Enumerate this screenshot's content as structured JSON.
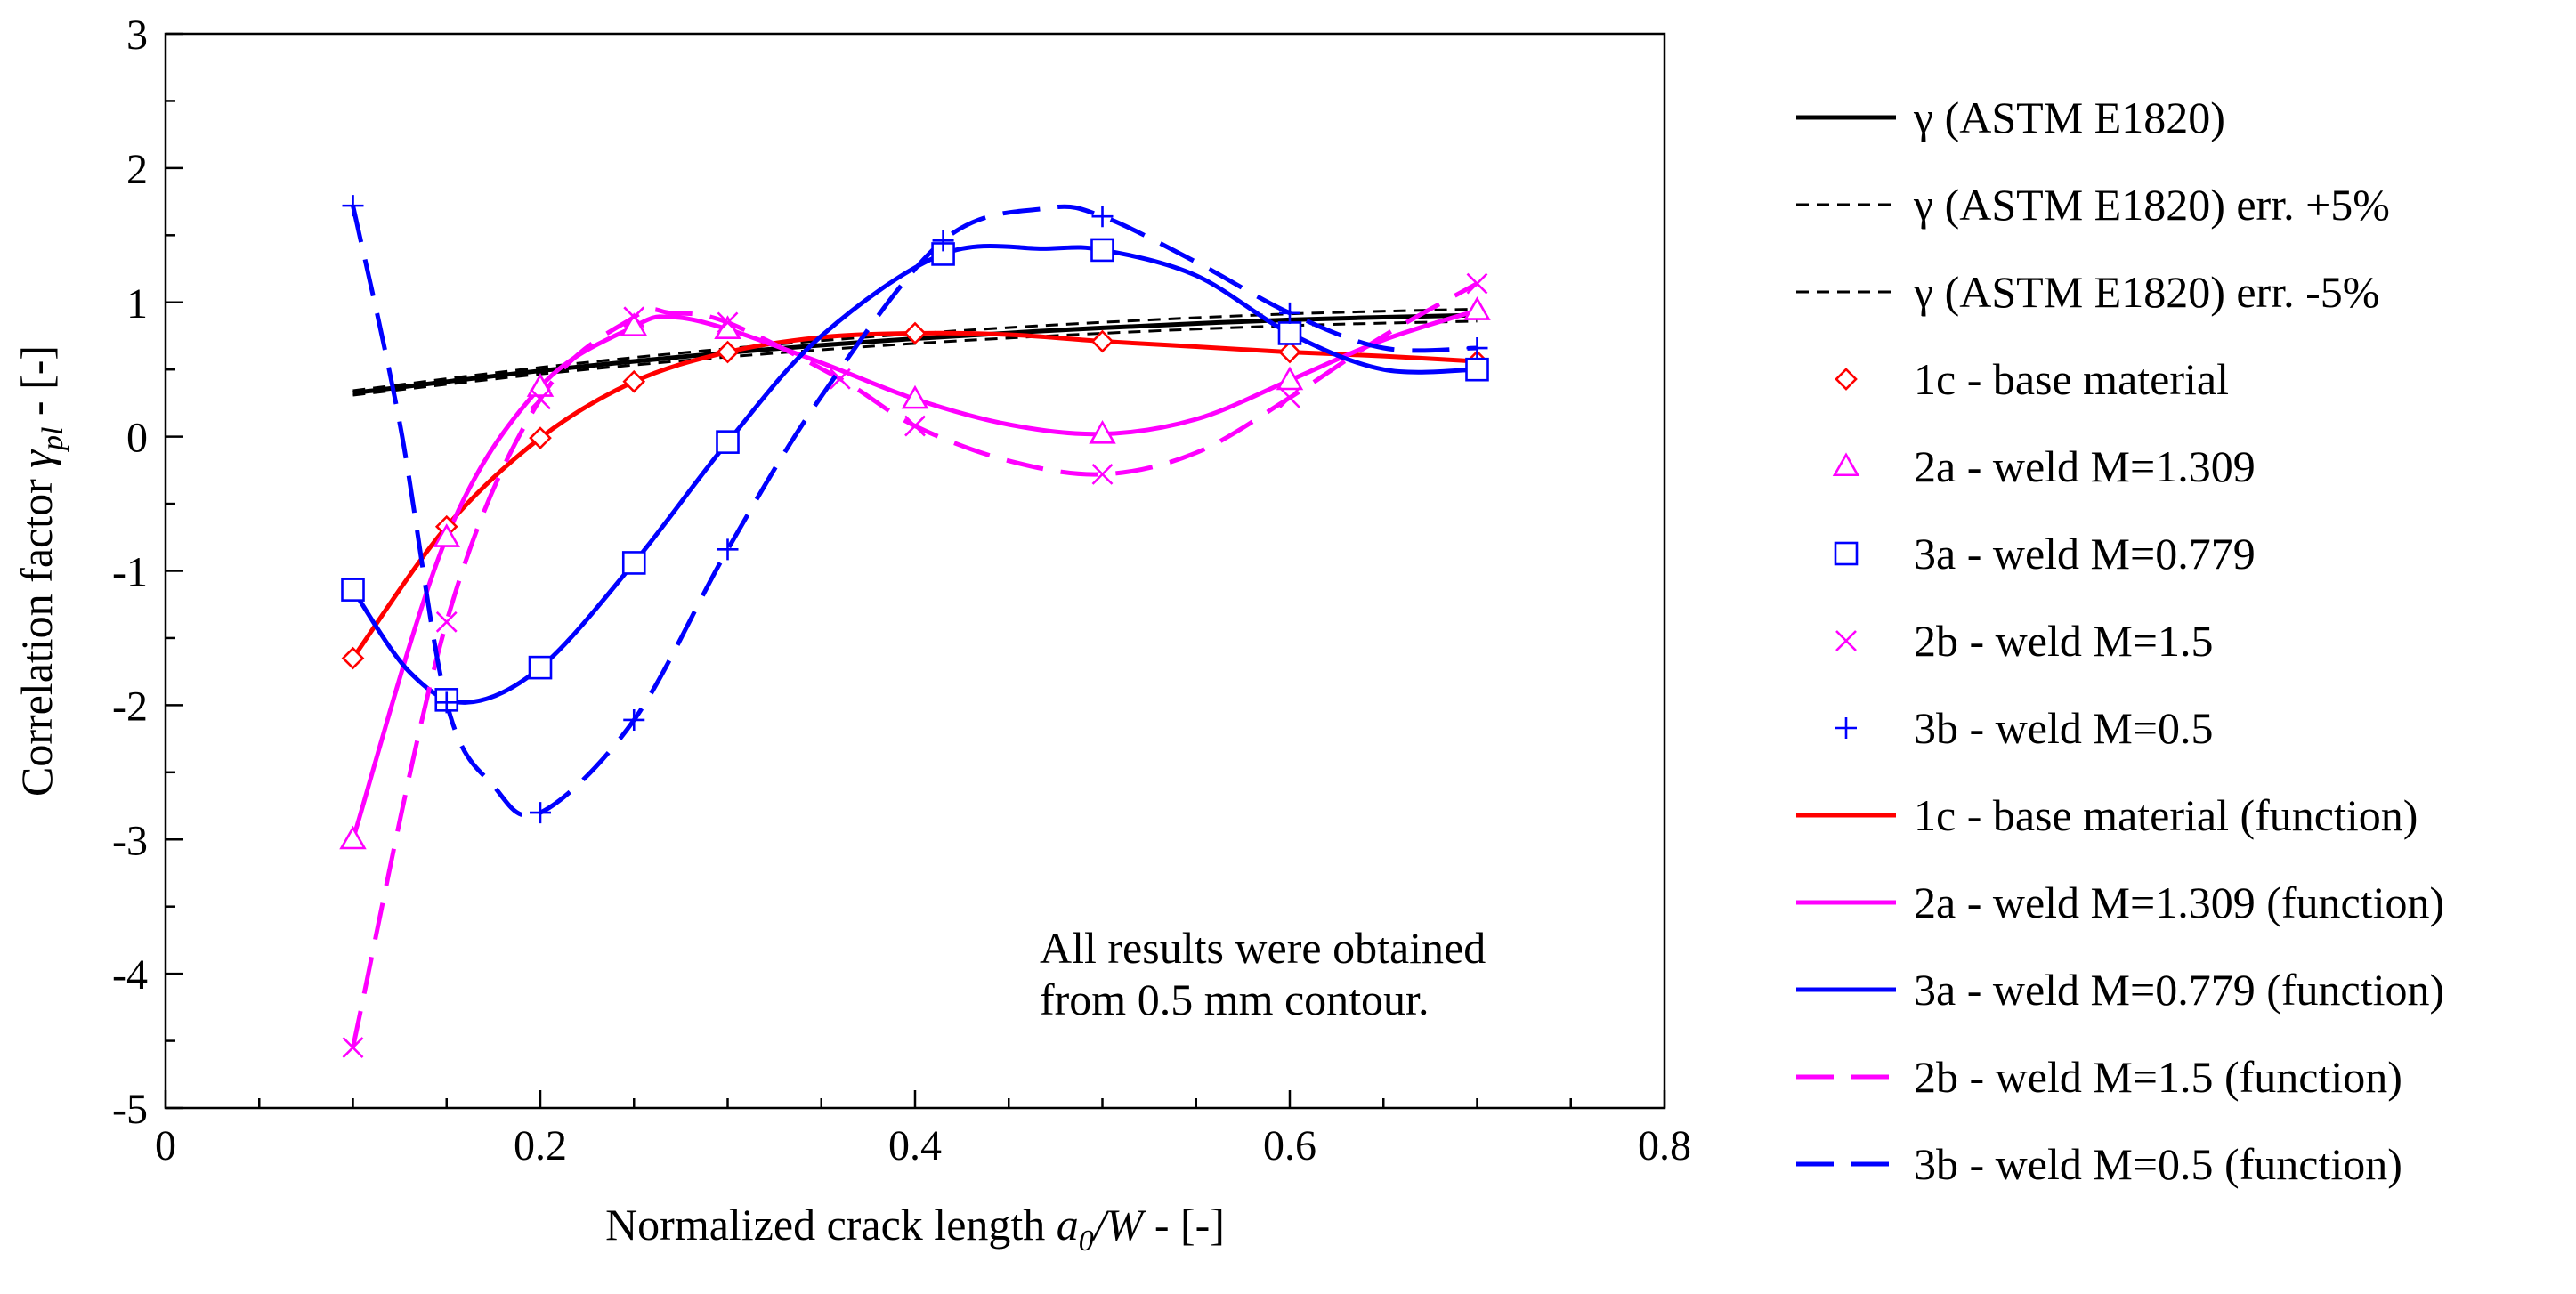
{
  "chart_data": {
    "type": "line",
    "title": "",
    "xlabel": {
      "prefix": "Normalized crack length ",
      "var": "a",
      "sub": "0",
      "rest": "/W",
      "suffix": " - [-]"
    },
    "ylabel": {
      "prefix": "Correlation factor ",
      "var": "γ",
      "sub": "pl",
      "suffix": " - [-]"
    },
    "xlim": [
      0,
      0.8
    ],
    "ylim": [
      -5,
      3
    ],
    "x_major_ticks": [
      0,
      0.2,
      0.4,
      0.6,
      0.8
    ],
    "x_tick_labels": [
      "0",
      "0.2",
      "0.4",
      "0.6",
      "0.8"
    ],
    "x_minor_step": 0.05,
    "y_major_ticks": [
      -5,
      -4,
      -3,
      -2,
      -1,
      0,
      1,
      2,
      3
    ],
    "y_tick_labels": [
      "-5",
      "-4",
      "-3",
      "-2",
      "-1",
      "0",
      "1",
      "2",
      "3"
    ],
    "y_minor_step": 0.5,
    "grid": false,
    "legend_position": "right-outside",
    "annotation": [
      "All results were obtained",
      "from 0.5 mm contour."
    ],
    "reference_lines": [
      {
        "name": "γ (ASTM E1820)",
        "color": "#000000",
        "dash": "solid",
        "x": [
          0.1,
          0.2,
          0.3,
          0.4,
          0.5,
          0.6,
          0.7
        ],
        "y": [
          0.325,
          0.49,
          0.625,
          0.73,
          0.81,
          0.87,
          0.905
        ]
      },
      {
        "name": "γ (ASTM E1820) err. +5%",
        "color": "#000000",
        "dash": "short",
        "x": [
          0.1,
          0.2,
          0.3,
          0.4,
          0.5,
          0.6,
          0.7
        ],
        "y": [
          0.342,
          0.515,
          0.656,
          0.767,
          0.851,
          0.914,
          0.95
        ]
      },
      {
        "name": "γ (ASTM E1820) err. -5%",
        "color": "#000000",
        "dash": "short",
        "x": [
          0.1,
          0.2,
          0.3,
          0.4,
          0.5,
          0.6,
          0.7
        ],
        "y": [
          0.309,
          0.466,
          0.594,
          0.694,
          0.77,
          0.827,
          0.86
        ]
      }
    ],
    "series": [
      {
        "name": "1c - base material",
        "marker": "diamond",
        "color": "#ff0000",
        "x": [
          0.1,
          0.15,
          0.2,
          0.25,
          0.3,
          0.4,
          0.5,
          0.6,
          0.7
        ],
        "y": [
          -1.65,
          -0.67,
          -0.01,
          0.41,
          0.63,
          0.77,
          0.71,
          0.63,
          0.56
        ]
      },
      {
        "name": "2a - weld M=1.309",
        "marker": "triangle",
        "color": "#ff00ff",
        "x": [
          0.1,
          0.15,
          0.2,
          0.25,
          0.3,
          0.4,
          0.5,
          0.6,
          0.7
        ],
        "y": [
          -3.0,
          -0.75,
          0.37,
          0.82,
          0.8,
          0.28,
          0.02,
          0.42,
          0.94
        ]
      },
      {
        "name": "3a - weld M=0.779",
        "marker": "square",
        "color": "#0000ff",
        "x": [
          0.1,
          0.15,
          0.2,
          0.25,
          0.3,
          0.415,
          0.5,
          0.6,
          0.7
        ],
        "y": [
          -1.14,
          -1.96,
          -1.72,
          -0.94,
          -0.04,
          1.36,
          1.39,
          0.77,
          0.5
        ]
      },
      {
        "name": "2b - weld M=1.5",
        "marker": "x",
        "color": "#ff00ff",
        "x": [
          0.1,
          0.15,
          0.2,
          0.25,
          0.3,
          0.36,
          0.4,
          0.5,
          0.6,
          0.7
        ],
        "y": [
          -4.55,
          -1.38,
          0.28,
          0.89,
          0.85,
          0.43,
          0.08,
          -0.28,
          0.29,
          1.14
        ]
      },
      {
        "name": "3b - weld M=0.5",
        "marker": "plus",
        "color": "#0000ff",
        "x": [
          0.1,
          0.15,
          0.2,
          0.25,
          0.3,
          0.415,
          0.5,
          0.6,
          0.7
        ],
        "y": [
          1.72,
          -1.98,
          -2.8,
          -2.11,
          -0.84,
          1.46,
          1.64,
          0.92,
          0.66
        ]
      }
    ],
    "functions": [
      {
        "name": "1c - base material (function)",
        "color": "#ff0000",
        "dash": "solid",
        "x": [
          0.1,
          0.15,
          0.2,
          0.25,
          0.3,
          0.35,
          0.4,
          0.45,
          0.5,
          0.55,
          0.6,
          0.65,
          0.7
        ],
        "y": [
          -1.65,
          -0.67,
          -0.01,
          0.41,
          0.63,
          0.74,
          0.77,
          0.76,
          0.71,
          0.67,
          0.63,
          0.6,
          0.56
        ]
      },
      {
        "name": "2a - weld M=1.309 (function)",
        "color": "#ff00ff",
        "dash": "solid",
        "x": [
          0.1,
          0.15,
          0.2,
          0.25,
          0.27,
          0.3,
          0.35,
          0.4,
          0.45,
          0.5,
          0.55,
          0.6,
          0.65,
          0.7
        ],
        "y": [
          -3.0,
          -0.75,
          0.37,
          0.82,
          0.89,
          0.8,
          0.55,
          0.28,
          0.09,
          0.02,
          0.13,
          0.42,
          0.72,
          0.94
        ]
      },
      {
        "name": "3a - weld M=0.779 (function)",
        "color": "#0000ff",
        "dash": "solid",
        "x": [
          0.1,
          0.13,
          0.16,
          0.2,
          0.25,
          0.3,
          0.35,
          0.415,
          0.47,
          0.5,
          0.55,
          0.6,
          0.65,
          0.7
        ],
        "y": [
          -1.14,
          -1.75,
          -1.98,
          -1.72,
          -0.94,
          -0.04,
          0.75,
          1.36,
          1.4,
          1.39,
          1.2,
          0.77,
          0.5,
          0.5
        ]
      },
      {
        "name": "2b - weld M=1.5 (function)",
        "color": "#ff00ff",
        "dash": "long",
        "x": [
          0.1,
          0.15,
          0.2,
          0.25,
          0.27,
          0.3,
          0.36,
          0.4,
          0.45,
          0.5,
          0.55,
          0.6,
          0.65,
          0.7
        ],
        "y": [
          -4.55,
          -1.38,
          0.28,
          0.89,
          0.92,
          0.85,
          0.43,
          0.08,
          -0.18,
          -0.28,
          -0.12,
          0.29,
          0.75,
          1.14
        ]
      },
      {
        "name": "3b - weld M=0.5 (function)",
        "color": "#0000ff",
        "dash": "long",
        "x": [
          0.1,
          0.125,
          0.15,
          0.175,
          0.2,
          0.25,
          0.3,
          0.35,
          0.415,
          0.47,
          0.5,
          0.55,
          0.6,
          0.65,
          0.7
        ],
        "y": [
          1.72,
          0.1,
          -1.98,
          -2.6,
          -2.8,
          -2.11,
          -0.84,
          0.3,
          1.46,
          1.7,
          1.64,
          1.3,
          0.92,
          0.66,
          0.66
        ]
      }
    ],
    "legend_order": [
      "γ (ASTM E1820)",
      "γ (ASTM E1820) err. +5%",
      "γ (ASTM E1820) err. -5%",
      "1c - base material",
      "2a - weld M=1.309",
      "3a - weld M=0.779",
      "2b - weld M=1.5",
      "3b - weld M=0.5",
      "1c - base material (function)",
      "2a - weld M=1.309 (function)",
      "3a - weld M=0.779 (function)",
      "2b - weld M=1.5 (function)",
      "3b - weld M=0.5 (function)"
    ]
  }
}
